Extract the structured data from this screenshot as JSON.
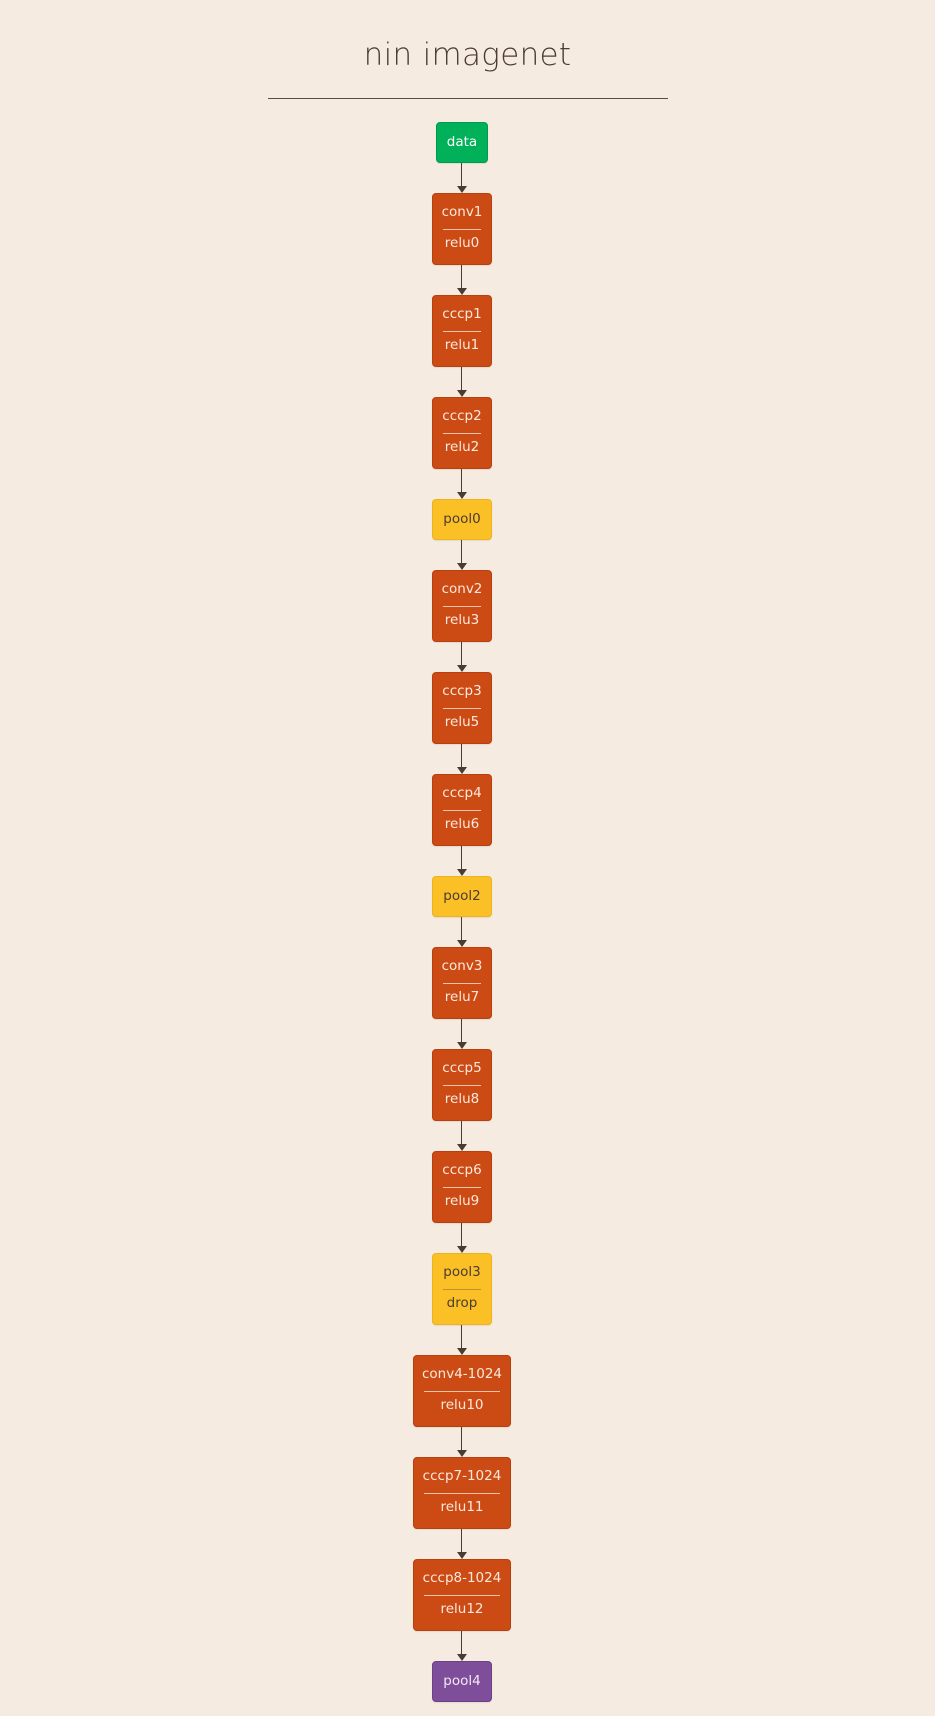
{
  "title": "nin imagenet",
  "colors": {
    "background": "#f5ebe0",
    "input": "#00b159",
    "conv": "#cc4a14",
    "pool": "#fcc027",
    "output": "#7e4e9a",
    "edge": "#4a3c33"
  },
  "nodes": [
    {
      "type": "input",
      "labels": [
        "data"
      ]
    },
    {
      "type": "conv",
      "labels": [
        "conv1",
        "relu0"
      ]
    },
    {
      "type": "conv",
      "labels": [
        "cccp1",
        "relu1"
      ]
    },
    {
      "type": "conv",
      "labels": [
        "cccp2",
        "relu2"
      ]
    },
    {
      "type": "pool",
      "labels": [
        "pool0"
      ]
    },
    {
      "type": "conv",
      "labels": [
        "conv2",
        "relu3"
      ]
    },
    {
      "type": "conv",
      "labels": [
        "cccp3",
        "relu5"
      ]
    },
    {
      "type": "conv",
      "labels": [
        "cccp4",
        "relu6"
      ]
    },
    {
      "type": "pool",
      "labels": [
        "pool2"
      ]
    },
    {
      "type": "conv",
      "labels": [
        "conv3",
        "relu7"
      ]
    },
    {
      "type": "conv",
      "labels": [
        "cccp5",
        "relu8"
      ]
    },
    {
      "type": "conv",
      "labels": [
        "cccp6",
        "relu9"
      ]
    },
    {
      "type": "pool",
      "labels": [
        "pool3",
        "drop"
      ]
    },
    {
      "type": "conv",
      "labels": [
        "conv4-1024",
        "relu10"
      ]
    },
    {
      "type": "conv",
      "labels": [
        "cccp7-1024",
        "relu11"
      ]
    },
    {
      "type": "conv",
      "labels": [
        "cccp8-1024",
        "relu12"
      ]
    },
    {
      "type": "output",
      "labels": [
        "pool4"
      ]
    }
  ]
}
